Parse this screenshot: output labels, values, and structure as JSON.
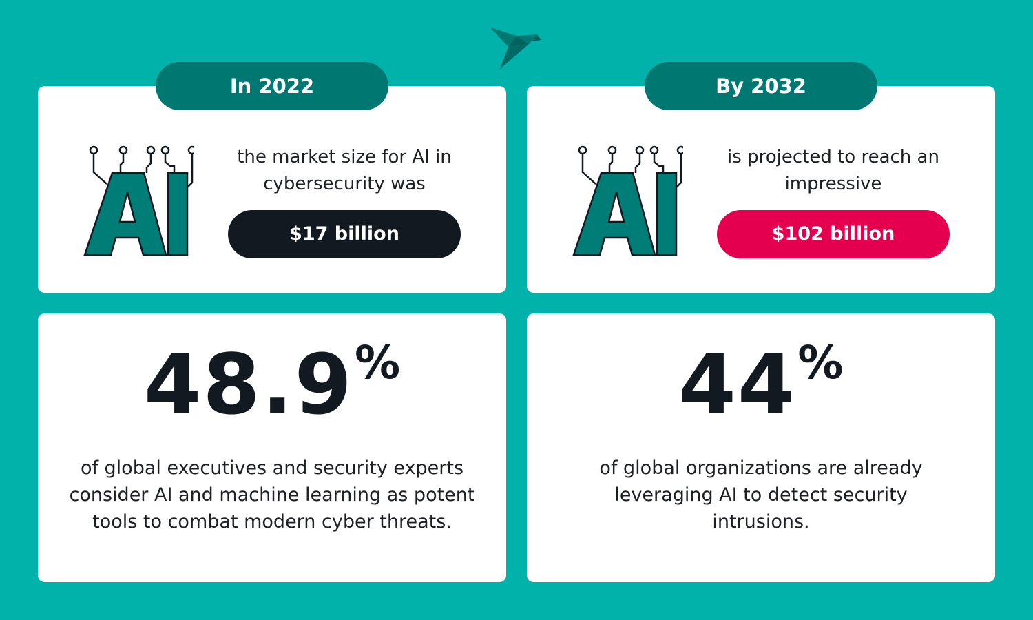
{
  "colors": {
    "background": "#00b2aa",
    "tab": "#007872",
    "dark_pill": "#121920",
    "red_pill": "#e4004f",
    "ai_fill": "#007d77"
  },
  "logo": {
    "icon": "bird-logo-icon"
  },
  "top_left": {
    "tab_label": "In 2022",
    "icon": "ai-circuit-icon",
    "ai_text": "AI",
    "description": "the market size for AI in cybersecurity was",
    "value": "$17 billion"
  },
  "top_right": {
    "tab_label": "By 2032",
    "icon": "ai-circuit-icon",
    "ai_text": "AI",
    "description": "is projected to reach an impressive",
    "value": "$102 billion"
  },
  "bottom_left": {
    "number": "48.9",
    "unit": "%",
    "text": "of global executives and security experts consider AI and machine learning as potent tools to combat modern cyber threats."
  },
  "bottom_right": {
    "number": "44",
    "unit": "%",
    "text": "of global organizations are already leveraging AI to detect security intrusions."
  }
}
